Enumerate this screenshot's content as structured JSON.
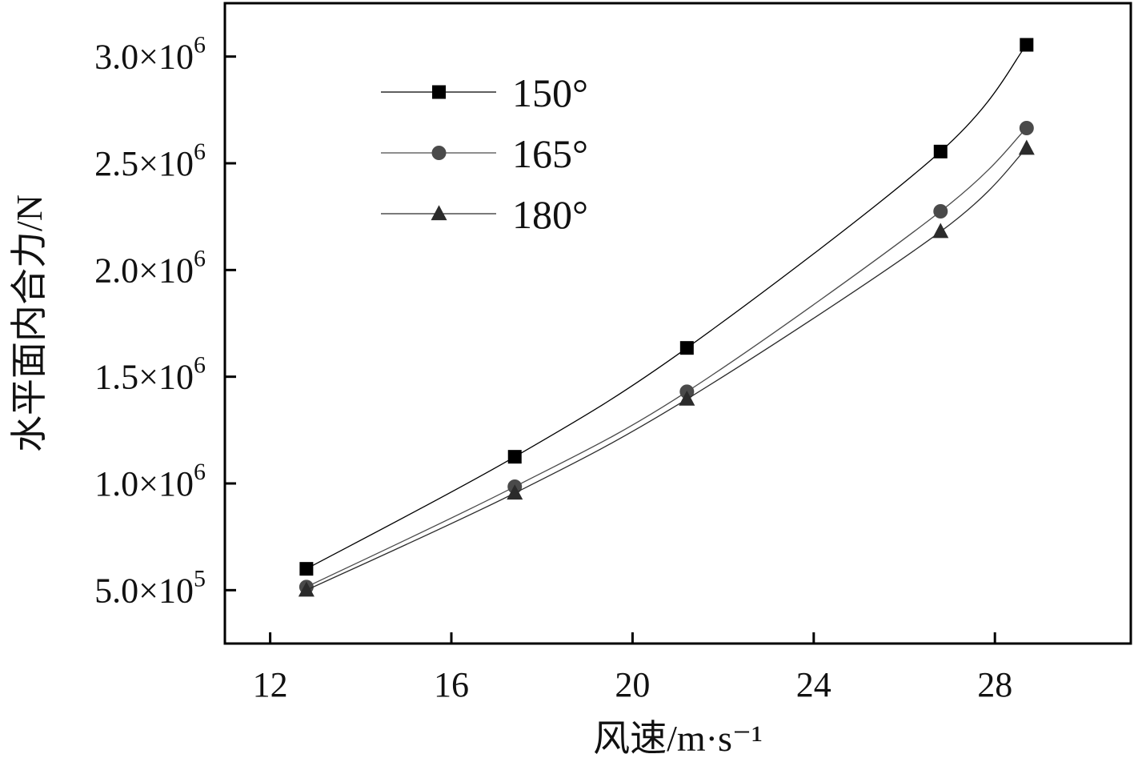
{
  "chart_data": {
    "type": "line",
    "title": "",
    "xlabel": "风速/m·s⁻¹",
    "ylabel": "水平面内合力/N",
    "xlim": [
      11,
      31
    ],
    "ylim": [
      250000,
      3250000
    ],
    "x_ticks": [
      12,
      16,
      20,
      24,
      28
    ],
    "x_tick_labels": [
      "12",
      "16",
      "20",
      "24",
      "28"
    ],
    "y_ticks": [
      500000,
      1000000,
      1500000,
      2000000,
      2500000,
      3000000
    ],
    "y_tick_labels": [
      {
        "mantissa": "5.0",
        "base": "×10",
        "exp": "5"
      },
      {
        "mantissa": "1.0",
        "base": "×10",
        "exp": "6"
      },
      {
        "mantissa": "1.5",
        "base": "×10",
        "exp": "6"
      },
      {
        "mantissa": "2.0",
        "base": "×10",
        "exp": "6"
      },
      {
        "mantissa": "2.5",
        "base": "×10",
        "exp": "6"
      },
      {
        "mantissa": "3.0",
        "base": "×10",
        "exp": "6"
      }
    ],
    "grid": false,
    "legend_position": "top-left",
    "x": [
      12.8,
      17.4,
      21.2,
      26.8,
      28.7
    ],
    "series": [
      {
        "name": "150°",
        "marker": "square",
        "color": "#000000",
        "values": [
          600000,
          1125000,
          1635000,
          2555000,
          3055000
        ]
      },
      {
        "name": "165°",
        "marker": "circle",
        "color": "#4a4a4a",
        "values": [
          515000,
          985000,
          1430000,
          2275000,
          2665000
        ]
      },
      {
        "name": "180°",
        "marker": "triangle",
        "color": "#2b2b2b",
        "values": [
          500000,
          955000,
          1395000,
          2180000,
          2570000
        ]
      }
    ]
  }
}
